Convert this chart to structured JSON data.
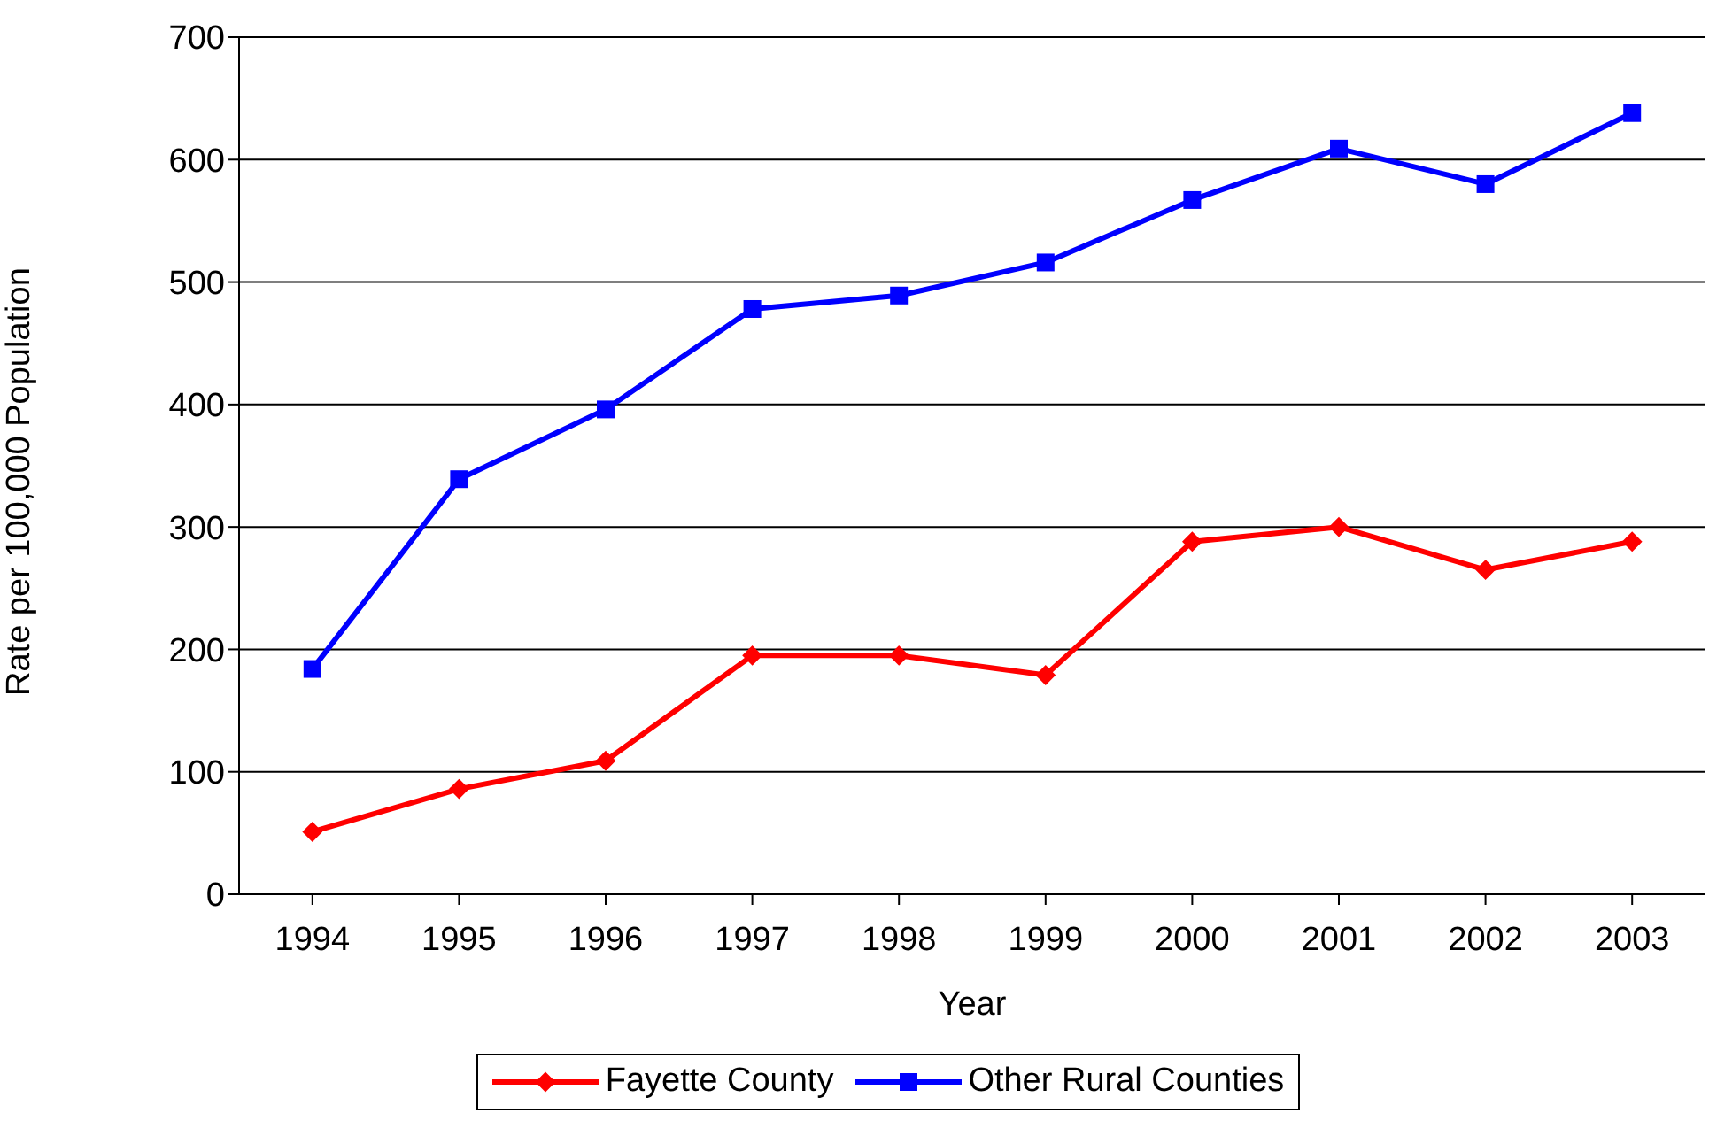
{
  "chart_data": {
    "type": "line",
    "xlabel": "Year",
    "ylabel": "Rate per 100,000 Population",
    "categories": [
      "1994",
      "1995",
      "1996",
      "1997",
      "1998",
      "1999",
      "2000",
      "2001",
      "2002",
      "2003"
    ],
    "series": [
      {
        "name": "Fayette County",
        "color": "#ff0000",
        "marker": "diamond",
        "values": [
          51,
          86,
          109,
          195,
          195,
          179,
          288,
          300,
          265,
          288
        ]
      },
      {
        "name": "Other Rural Counties",
        "color": "#0000ff",
        "marker": "square",
        "values": [
          184,
          339,
          396,
          478,
          489,
          516,
          567,
          609,
          580,
          638
        ]
      }
    ],
    "ylim": [
      0,
      700
    ],
    "yticks": [
      0,
      100,
      200,
      300,
      400,
      500,
      600,
      700
    ],
    "grid": "y",
    "legend": "bottom"
  }
}
